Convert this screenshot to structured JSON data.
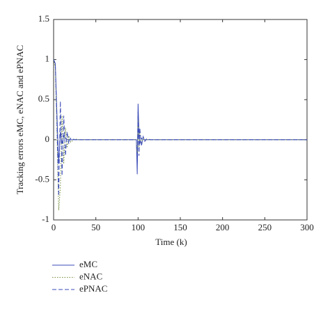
{
  "chart_data": {
    "type": "line",
    "x_label": "Time (k)",
    "y_label": "Tracking errors eMC, eNAC and ePNAC",
    "x": [
      0,
      2,
      4,
      6,
      8,
      10,
      12,
      14,
      16,
      18,
      20,
      25,
      30,
      40,
      60,
      98,
      99,
      100,
      101,
      102,
      104,
      106,
      108,
      110,
      115,
      120,
      150,
      200,
      250,
      300
    ],
    "series": [
      {
        "name": "eMC",
        "color": "#3a4bb8",
        "style": "solid",
        "values": [
          1,
          0.95,
          0.3,
          -0.3,
          0.1,
          -0.05,
          0.05,
          0.02,
          0,
          0,
          0,
          0,
          0,
          0,
          0,
          0,
          -0.43,
          0.45,
          0.1,
          -0.05,
          0.02,
          0,
          0,
          0,
          0,
          0,
          0,
          0,
          0,
          0
        ]
      },
      {
        "name": "eNAC",
        "color": "#6f8a3a",
        "style": "dotted",
        "values": [
          1,
          0.9,
          0.1,
          -0.88,
          -0.6,
          0.3,
          -0.3,
          0.15,
          -0.1,
          0.05,
          -0.03,
          0.01,
          0,
          0,
          0,
          0,
          -0.2,
          0.25,
          -0.15,
          0.1,
          -0.05,
          0.03,
          -0.01,
          0,
          0,
          0,
          0,
          0,
          0,
          0
        ]
      },
      {
        "name": "ePNAC",
        "color": "#3a4bb8",
        "style": "dashed",
        "values": [
          1,
          0.95,
          0.2,
          -0.7,
          0.48,
          -0.45,
          0.3,
          -0.2,
          0.1,
          -0.05,
          0.02,
          0,
          0,
          0,
          0,
          0,
          -0.3,
          0.35,
          -0.2,
          0.15,
          -0.08,
          0.04,
          -0.02,
          0.01,
          0,
          0,
          0,
          0,
          0,
          0
        ]
      }
    ],
    "xlim": [
      0,
      300
    ],
    "xticks": [
      0,
      50,
      100,
      150,
      200,
      250,
      300
    ],
    "ylim": [
      -1,
      1.5
    ],
    "yticks": [
      -1,
      -0.5,
      0,
      0.5,
      1,
      1.5
    ],
    "legend": "below"
  }
}
